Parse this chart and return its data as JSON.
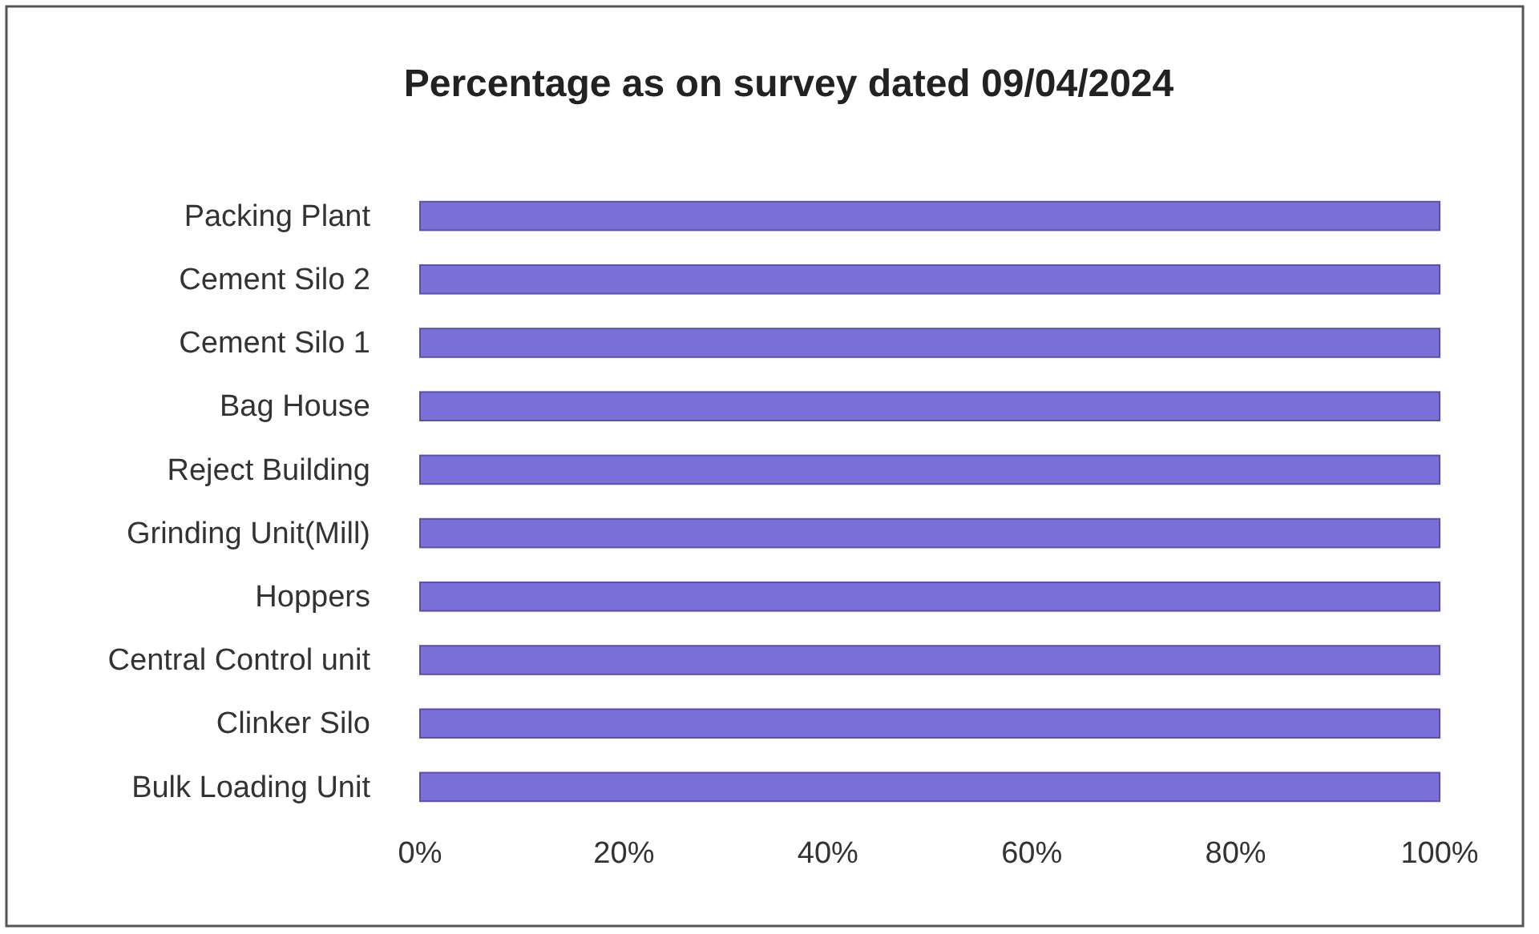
{
  "chart_data": {
    "type": "bar",
    "orientation": "horizontal",
    "title": "Percentage as on survey dated 09/04/2024",
    "categories": [
      "Packing Plant",
      "Cement Silo 2",
      "Cement Silo 1",
      "Bag House",
      "Reject Building",
      "Grinding Unit(Mill)",
      "Hoppers",
      "Central Control unit",
      "Clinker Silo",
      "Bulk Loading Unit"
    ],
    "values": [
      100,
      100,
      100,
      100,
      100,
      100,
      100,
      100,
      100,
      100
    ],
    "color": "#7a70d8",
    "xlim": [
      0,
      100
    ],
    "xticks": [
      {
        "value": 0,
        "label": "0%"
      },
      {
        "value": 20,
        "label": "20%"
      },
      {
        "value": 40,
        "label": "40%"
      },
      {
        "value": 60,
        "label": "60%"
      },
      {
        "value": 80,
        "label": "80%"
      },
      {
        "value": 100,
        "label": "100%"
      }
    ],
    "grid": false,
    "legend": false
  }
}
